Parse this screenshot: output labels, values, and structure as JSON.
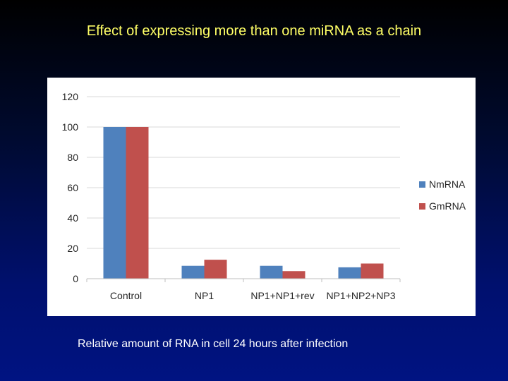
{
  "slide": {
    "title": "Effect of expressing more than one miRNA as a chain",
    "caption": "Relative amount of RNA in cell 24 hours after infection"
  },
  "chart_data": {
    "type": "bar",
    "categories": [
      "Control",
      "NP1",
      "NP1+NP1+rev",
      "NP1+NP2+NP3"
    ],
    "series": [
      {
        "name": "NmRNA",
        "color": "#4f81bd",
        "values": [
          100,
          8.5,
          8.5,
          7.5
        ]
      },
      {
        "name": "GmRNA",
        "color": "#c0504d",
        "values": [
          100,
          12.5,
          5,
          10
        ]
      }
    ],
    "ylim": [
      0,
      120
    ],
    "yticks": [
      "0",
      "20",
      "40",
      "60",
      "80",
      "100",
      "120"
    ],
    "grid": true,
    "legend": "right",
    "xlabel": "",
    "ylabel": ""
  }
}
